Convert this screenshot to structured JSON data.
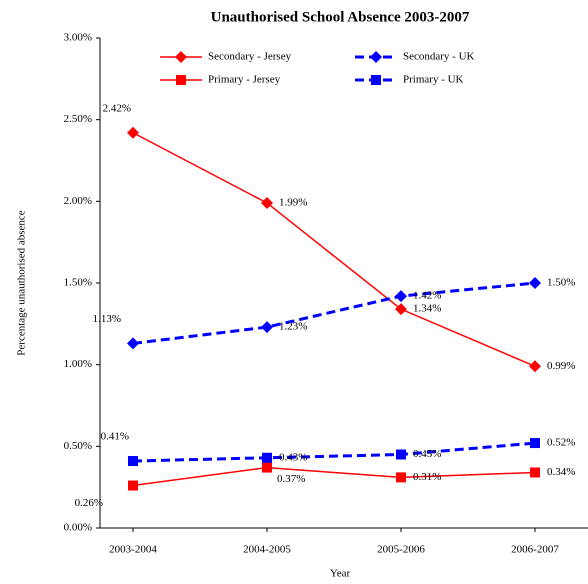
{
  "chart_data": {
    "type": "line",
    "title": "Unauthorised School Absence 2003-2007",
    "x_label": "Year",
    "y_label": "Percentage unauthorised absence",
    "categories": [
      "2003-2004",
      "2004-2005",
      "2005-2006",
      "2006-2007"
    ],
    "ylim": [
      0,
      3
    ],
    "yticks": [
      {
        "value": 0,
        "label": "0.00%"
      },
      {
        "value": 0.5,
        "label": "0.50%"
      },
      {
        "value": 1,
        "label": "1.00%"
      },
      {
        "value": 1.5,
        "label": "1.50%"
      },
      {
        "value": 2,
        "label": "2.00%"
      },
      {
        "value": 2.5,
        "label": "2.50%"
      },
      {
        "value": 3,
        "label": "3.00%"
      }
    ],
    "series": [
      {
        "name": "Secondary - Jersey",
        "color": "#ff0000",
        "marker": "diamond",
        "dashed": false,
        "values": [
          2.42,
          1.99,
          1.34,
          0.99
        ],
        "value_labels": [
          "2.42%",
          "1.99%",
          "1.34%",
          "0.99%"
        ]
      },
      {
        "name": "Secondary - UK",
        "color": "#0000ff",
        "marker": "diamond",
        "dashed": true,
        "values": [
          1.13,
          1.23,
          1.42,
          1.5
        ],
        "value_labels": [
          "1.13%",
          "1.23%",
          "1.42%",
          "1.50%"
        ]
      },
      {
        "name": "Primary - Jersey",
        "color": "#ff0000",
        "marker": "square",
        "dashed": false,
        "values": [
          0.26,
          0.37,
          0.31,
          0.34
        ],
        "value_labels": [
          "0.26%",
          "0.37%",
          "0.31%",
          "0.34%"
        ]
      },
      {
        "name": "Primary - UK",
        "color": "#0000ff",
        "marker": "square",
        "dashed": true,
        "values": [
          0.41,
          0.43,
          0.45,
          0.52
        ],
        "value_labels": [
          "0.41%",
          "0.43%",
          "0.45%",
          "0.52%"
        ]
      }
    ],
    "legend": "top"
  }
}
